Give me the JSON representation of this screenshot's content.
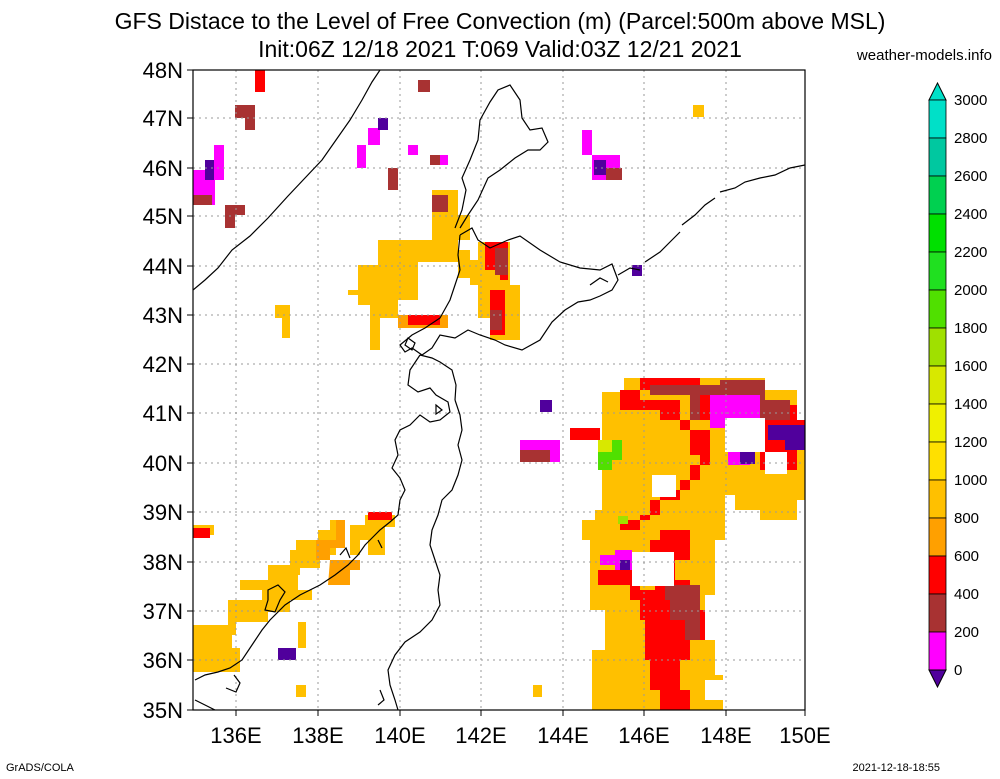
{
  "title_line1": "GFS Distace to the Level of Free Convection (m) (Parcel:500m above MSL)",
  "title_line2": "Init:06Z 12/18 2021 T:069 Valid:03Z 12/21 2021",
  "site": "weather-models.info",
  "footer_left": "GrADS/COLA",
  "footer_right": "2021-12-18-18:55",
  "lat_labels": [
    "48N",
    "47N",
    "46N",
    "45N",
    "44N",
    "43N",
    "42N",
    "41N",
    "40N",
    "39N",
    "38N",
    "37N",
    "36N",
    "35N"
  ],
  "lon_labels": [
    "136E",
    "138E",
    "140E",
    "142E",
    "144E",
    "146E",
    "148E",
    "150E"
  ],
  "colorbar": {
    "labels": [
      "3000",
      "2800",
      "2600",
      "2400",
      "2200",
      "2000",
      "1800",
      "1600",
      "1400",
      "1200",
      "1000",
      "800",
      "600",
      "400",
      "200",
      "0"
    ],
    "colors": [
      "#00e0c8",
      "#00c8a0",
      "#00d050",
      "#00e000",
      "#20e020",
      "#50e000",
      "#a0e000",
      "#d8e800",
      "#f0f000",
      "#ffe000",
      "#ffc000",
      "#ffa000",
      "#ff0000",
      "#a83232",
      "#ff00ff",
      "#50009c"
    ]
  }
}
